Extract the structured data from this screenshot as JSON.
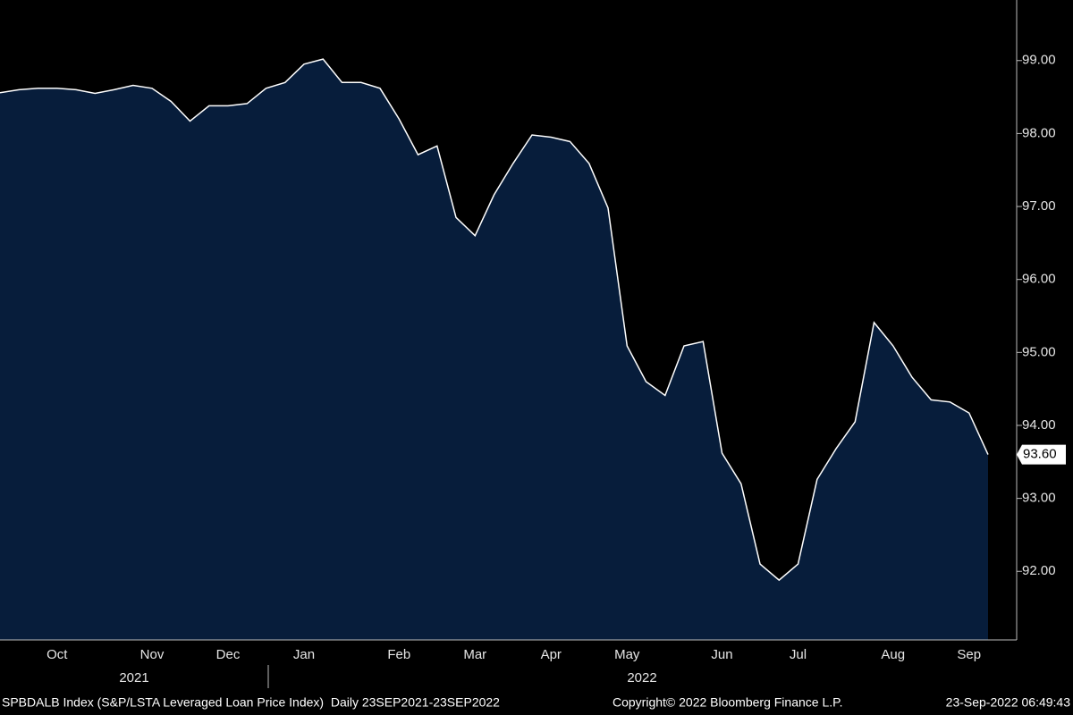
{
  "chart_data": {
    "type": "area",
    "categories": [
      null,
      null,
      null,
      "Oct",
      null,
      null,
      null,
      null,
      "Nov",
      null,
      null,
      null,
      "Dec",
      null,
      null,
      null,
      "Jan",
      null,
      null,
      null,
      null,
      "Feb",
      null,
      null,
      null,
      "Mar",
      null,
      null,
      null,
      "Apr",
      null,
      null,
      null,
      "May",
      null,
      null,
      null,
      null,
      "Jun",
      null,
      null,
      null,
      "Jul",
      null,
      null,
      null,
      null,
      "Aug",
      null,
      null,
      null,
      "Sep",
      null
    ],
    "values": [
      98.56,
      98.6,
      98.62,
      98.62,
      98.6,
      98.55,
      98.6,
      98.66,
      98.62,
      98.44,
      98.17,
      98.38,
      98.38,
      98.41,
      98.62,
      98.7,
      98.95,
      99.02,
      98.7,
      98.7,
      98.62,
      98.2,
      97.71,
      97.83,
      96.85,
      96.6,
      97.16,
      97.59,
      97.98,
      97.95,
      97.89,
      97.59,
      96.98,
      95.09,
      94.6,
      94.41,
      95.09,
      95.15,
      93.62,
      93.2,
      92.1,
      91.88,
      92.1,
      93.26,
      93.68,
      94.05,
      95.41,
      95.09,
      94.66,
      94.35,
      94.32,
      94.17,
      93.6
    ],
    "value_labels": [
      null,
      null,
      null,
      null,
      null,
      null,
      null,
      null,
      null,
      null,
      null,
      null,
      null,
      null,
      null,
      null,
      null,
      null,
      null,
      null,
      null,
      null,
      null,
      null,
      null,
      null,
      null,
      null,
      null,
      null,
      null,
      null,
      null,
      null,
      null,
      null,
      null,
      null,
      null,
      null,
      null,
      null,
      null,
      null,
      null,
      null,
      null,
      null,
      null,
      null,
      null,
      null,
      "93.60"
    ],
    "color": "#071d3b",
    "line_color": "#ffffff",
    "ylim": [
      91.06,
      99.83
    ],
    "yticks": [
      {
        "value": 92,
        "label": "92.00"
      },
      {
        "value": 93,
        "label": "93.00"
      },
      {
        "value": 94,
        "label": "94.00"
      },
      {
        "value": 95,
        "label": "95.00"
      },
      {
        "value": 96,
        "label": "96.00"
      },
      {
        "value": 97,
        "label": "97.00"
      },
      {
        "value": 98,
        "label": "98.00"
      },
      {
        "value": 99,
        "label": "99.00"
      }
    ],
    "year_labels": [
      "2021",
      "2022"
    ],
    "footer": {
      "description": "SPBDALB Index (S&P/LSTA Leveraged Loan Price Index)  Daily 23SEP2021-23SEP2022",
      "copyright": "Copyright© 2022 Bloomberg Finance L.P.",
      "timestamp": "23-Sep-2022 06:49:43"
    }
  }
}
